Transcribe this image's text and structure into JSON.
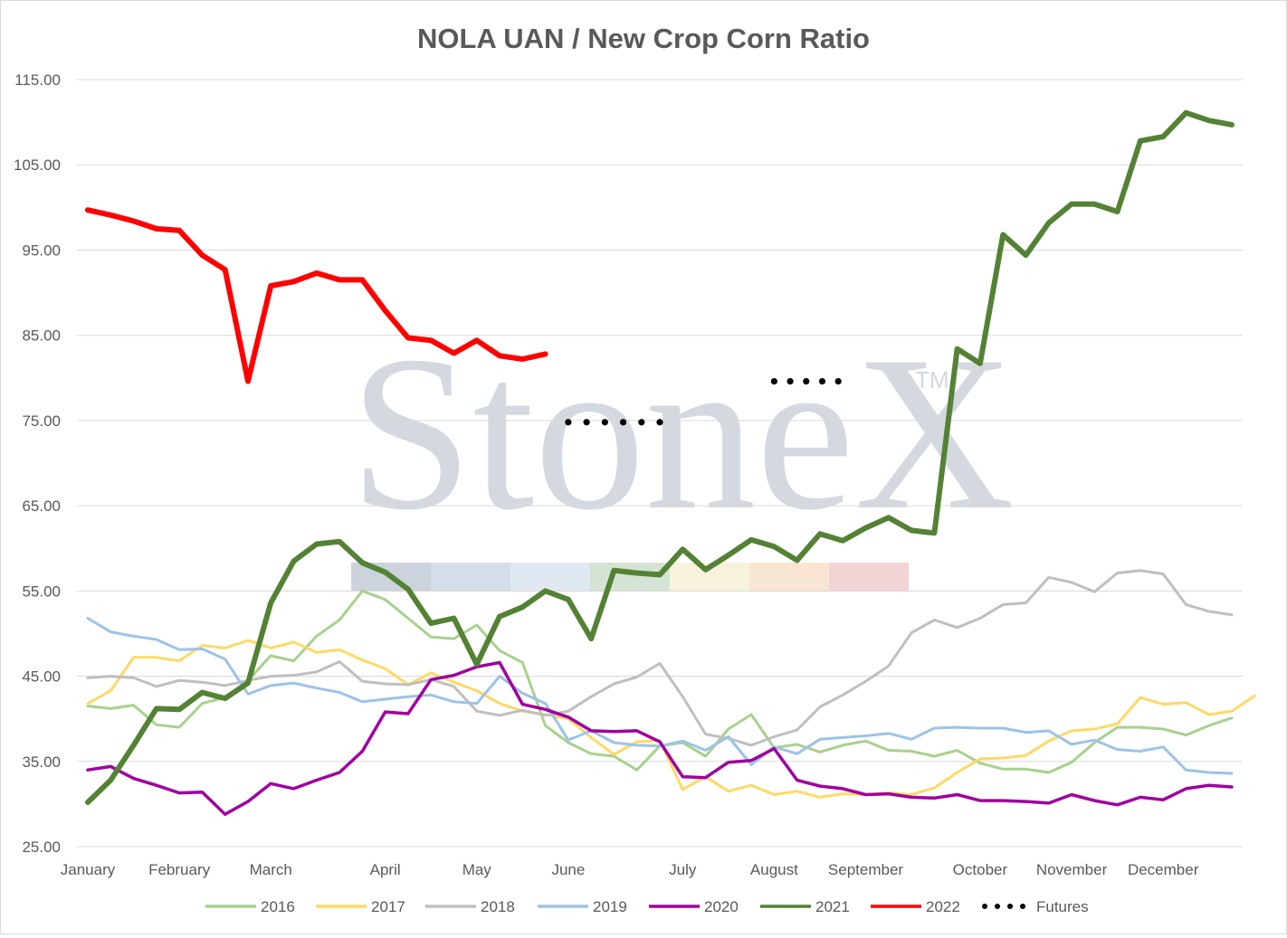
{
  "chart_data": {
    "type": "line",
    "title": "NOLA UAN / New Crop Corn Ratio",
    "watermark": "StoneX",
    "watermark_mark": "TM",
    "ylim": [
      25,
      115
    ],
    "yticks": [
      "25.00",
      "35.00",
      "45.00",
      "55.00",
      "65.00",
      "75.00",
      "85.00",
      "95.00",
      "105.00",
      "115.00"
    ],
    "grid": true,
    "legend_position": "bottom",
    "x_unit": "week of year (1-52)",
    "month_labels": [
      {
        "label": "January",
        "week": 1
      },
      {
        "label": "February",
        "week": 5
      },
      {
        "label": "March",
        "week": 9
      },
      {
        "label": "April",
        "week": 14
      },
      {
        "label": "May",
        "week": 18
      },
      {
        "label": "June",
        "week": 22
      },
      {
        "label": "July",
        "week": 27
      },
      {
        "label": "August",
        "week": 31
      },
      {
        "label": "September",
        "week": 35
      },
      {
        "label": "October",
        "week": 40
      },
      {
        "label": "November",
        "week": 44
      },
      {
        "label": "December",
        "week": 48
      }
    ],
    "series": [
      {
        "name": "2016",
        "color": "#a9d18e",
        "width": 3,
        "values": [
          41.5,
          41.2,
          41.6,
          39.3,
          39,
          41.8,
          42.5,
          44.5,
          47.4,
          46.8,
          49.7,
          51.6,
          55,
          54,
          51.8,
          49.6,
          49.4,
          51,
          48,
          46.6,
          39.2,
          37.2,
          35.9,
          35.6,
          34,
          36.8,
          37.2,
          35.6,
          38.8,
          40.5,
          36.6,
          37,
          36.1,
          36.9,
          37.4,
          36.3,
          36.2,
          35.6,
          36.3,
          34.8,
          34.1,
          34.1,
          33.7,
          34.9,
          37.2,
          39,
          39,
          38.8,
          38.1,
          39.2,
          40.1
        ]
      },
      {
        "name": "2017",
        "color": "#ffd966",
        "width": 3,
        "values": [
          41.8,
          43.3,
          47.2,
          47.2,
          46.8,
          48.6,
          48.3,
          49.2,
          48.3,
          49,
          47.8,
          48.1,
          46.9,
          45.9,
          44,
          45.4,
          44.3,
          43.3,
          41.8,
          40.9,
          40.5,
          40,
          37.8,
          35.8,
          37.3,
          37.5,
          31.7,
          33.2,
          31.5,
          32.2,
          31.1,
          31.5,
          30.8,
          31.2,
          31.1,
          31.3,
          31.1,
          31.9,
          33.7,
          35.3,
          35.4,
          35.7,
          37.4,
          38.6,
          38.8,
          39.4,
          42.5,
          41.7,
          41.9,
          40.5,
          40.9,
          42.7
        ]
      },
      {
        "name": "2018",
        "color": "#bfbfbf",
        "width": 3,
        "values": [
          44.8,
          45,
          44.8,
          43.8,
          44.5,
          44.3,
          43.9,
          44.5,
          45,
          45.1,
          45.5,
          46.7,
          44.4,
          44.1,
          44,
          44.6,
          43.8,
          40.9,
          40.4,
          41,
          40.4,
          40.9,
          42.6,
          44.1,
          44.9,
          46.5,
          42.6,
          38.2,
          37.7,
          36.9,
          37.9,
          38.7,
          41.4,
          42.8,
          44.4,
          46.2,
          50.1,
          51.6,
          50.7,
          51.8,
          53.4,
          53.6,
          56.6,
          56,
          54.9,
          57.1,
          57.4,
          57,
          53.4,
          52.6,
          52.2
        ]
      },
      {
        "name": "2019",
        "color": "#9dc3e6",
        "width": 3,
        "values": [
          51.8,
          50.2,
          49.7,
          49.3,
          48.1,
          48.2,
          47,
          42.9,
          43.9,
          44.2,
          43.6,
          43.1,
          42,
          42.3,
          42.6,
          42.8,
          42,
          41.8,
          45,
          43,
          41.8,
          37.5,
          38.6,
          37.2,
          36.9,
          36.8,
          37.4,
          36.3,
          37.9,
          34.6,
          36.7,
          35.9,
          37.6,
          37.8,
          38,
          38.3,
          37.6,
          38.9,
          39,
          38.9,
          38.9,
          38.4,
          38.6,
          37,
          37.5,
          36.4,
          36.2,
          36.7,
          34,
          33.7,
          33.6
        ]
      },
      {
        "name": "2020",
        "color": "#a000a0",
        "width": 3.5,
        "values": [
          34,
          34.4,
          33,
          32.2,
          31.3,
          31.4,
          28.8,
          30.3,
          32.4,
          31.8,
          32.8,
          33.7,
          36.2,
          40.8,
          40.6,
          44.6,
          45.1,
          46.1,
          46.6,
          41.7,
          41.1,
          40.2,
          38.6,
          38.5,
          38.6,
          37.3,
          33.2,
          33.1,
          34.9,
          35.1,
          36.5,
          32.8,
          32.1,
          31.8,
          31.1,
          31.2,
          30.8,
          30.7,
          31.1,
          30.4,
          30.4,
          30.3,
          30.1,
          31.1,
          30.4,
          29.9,
          30.8,
          30.5,
          31.8,
          32.2,
          32
        ]
      },
      {
        "name": "2021",
        "color": "#548235",
        "width": 6,
        "values": [
          30.2,
          32.8,
          36.9,
          41.2,
          41.1,
          43.1,
          42.4,
          44.2,
          53.6,
          58.5,
          60.5,
          60.8,
          58.3,
          57.2,
          55.2,
          51.2,
          51.8,
          46.4,
          52,
          53.1,
          55,
          54,
          49.4,
          57.4,
          57.1,
          56.9,
          59.9,
          57.5,
          59.2,
          61,
          60.2,
          58.6,
          61.7,
          60.9,
          62.4,
          63.6,
          62.1,
          61.8,
          83.4,
          81.7,
          96.8,
          94.4,
          98.2,
          100.4,
          100.4,
          99.5,
          107.8,
          108.3,
          111.1,
          110.2,
          109.7
        ]
      },
      {
        "name": "2022",
        "color": "#ff0000",
        "width": 6,
        "values": [
          99.7,
          99.1,
          98.4,
          97.5,
          97.3,
          94.4,
          92.7,
          79.6,
          90.8,
          91.3,
          92.3,
          91.5,
          91.5,
          87.9,
          84.7,
          84.4,
          82.9,
          84.4,
          82.6,
          82.2,
          82.8
        ]
      }
    ],
    "futures": {
      "name": "Futures",
      "color": "#000000",
      "segments": [
        {
          "weeks": [
            22.0,
            22.8,
            23.6,
            24.4,
            25.2,
            26.0
          ],
          "value": 74.8
        },
        {
          "weeks": [
            31.0,
            31.7,
            32.4,
            33.1,
            33.8
          ],
          "value": 79.6
        }
      ]
    }
  }
}
